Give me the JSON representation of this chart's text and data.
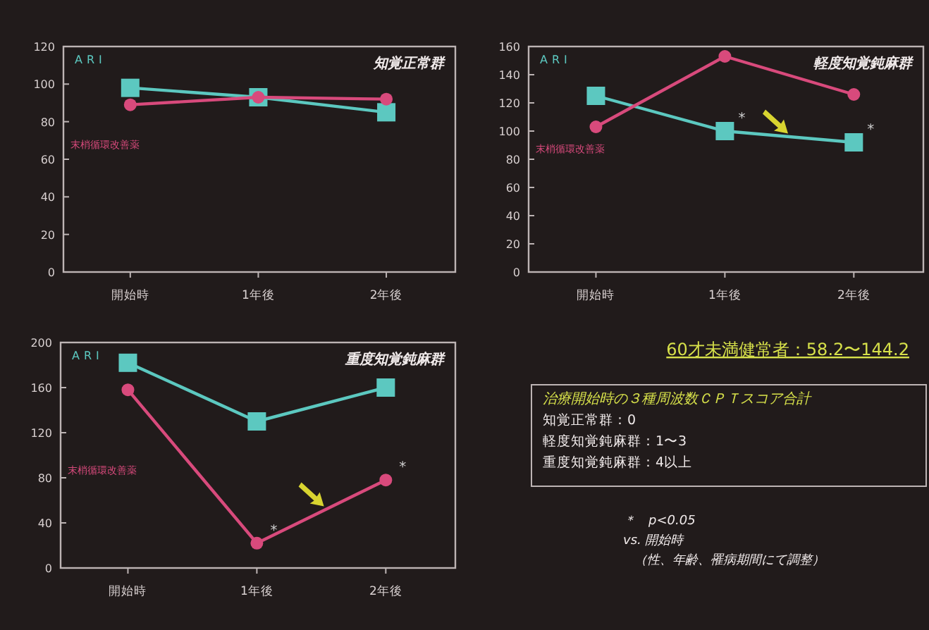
{
  "chart_data": [
    {
      "type": "line",
      "title": "知覚正常群",
      "categories": [
        "開始時",
        "1年後",
        "2年後"
      ],
      "ylim": [
        0,
        120
      ],
      "yticks": [
        0,
        20,
        40,
        60,
        80,
        100,
        120
      ],
      "series": [
        {
          "name": "ARI",
          "color": "#5cc8c0",
          "marker": "square",
          "values": [
            98,
            93,
            85
          ]
        },
        {
          "name": "末梢循環改善薬",
          "color": "#d84a7c",
          "marker": "circle",
          "values": [
            89,
            93,
            92
          ]
        }
      ]
    },
    {
      "type": "line",
      "title": "軽度知覚鈍麻群",
      "categories": [
        "開始時",
        "1年後",
        "2年後"
      ],
      "ylim": [
        0,
        160
      ],
      "yticks": [
        0,
        20,
        40,
        60,
        80,
        100,
        120,
        140,
        160
      ],
      "series": [
        {
          "name": "ARI",
          "color": "#5cc8c0",
          "marker": "square",
          "values": [
            125,
            100,
            92
          ]
        },
        {
          "name": "末梢循環改善薬",
          "color": "#d84a7c",
          "marker": "circle",
          "values": [
            103,
            153,
            126
          ]
        }
      ],
      "annotations": [
        {
          "text": "*",
          "x": "1年後",
          "y": 100
        },
        {
          "text": "*",
          "x": "2年後",
          "y": 92
        }
      ]
    },
    {
      "type": "line",
      "title": "重度知覚鈍麻群",
      "categories": [
        "開始時",
        "1年後",
        "2年後"
      ],
      "ylim": [
        0,
        200
      ],
      "yticks": [
        0,
        40,
        80,
        120,
        160,
        200
      ],
      "series": [
        {
          "name": "ARI",
          "color": "#5cc8c0",
          "marker": "square",
          "values": [
            182,
            130,
            160
          ]
        },
        {
          "name": "末梢循環改善薬",
          "color": "#d84a7c",
          "marker": "circle",
          "values": [
            158,
            22,
            78
          ]
        }
      ],
      "annotations": [
        {
          "text": "*",
          "x": "1年後",
          "y": 22
        },
        {
          "text": "*",
          "x": "2年後",
          "y": 78
        }
      ]
    },
    {
      "type": "other",
      "annotations": [
        "60才未満健常者：58.2〜144.2",
        "治療開始時の３種周波数ＣＰＴスコア合計",
        "知覚正常群：0",
        "軽度知覚鈍麻群：1〜3",
        "重度知覚鈍麻群：4以上",
        "＊　p<0.05",
        "vs. 開始時",
        "（性、年齢、罹病期間にて調整）"
      ]
    }
  ]
}
